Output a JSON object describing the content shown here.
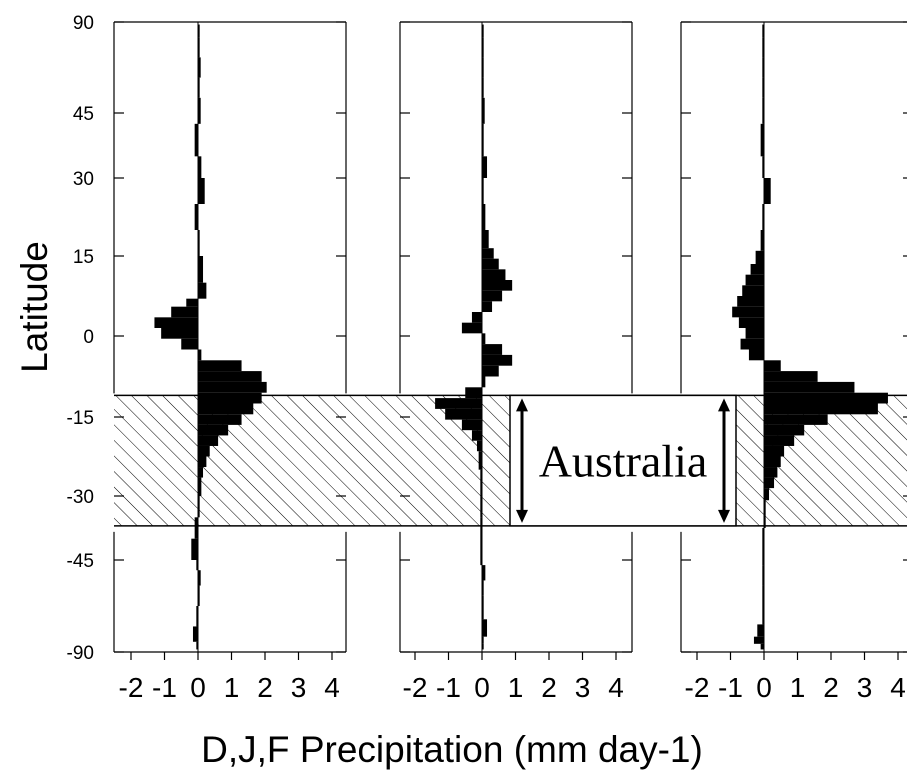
{
  "chart_data": {
    "type": "bar",
    "orientation": "horizontal",
    "ylabel": "Latitude",
    "xlabel": "D,J,F Precipitation (mm day-1)",
    "ylim": [
      -90,
      90
    ],
    "xlim": [
      -2.5,
      4.5
    ],
    "yticks": [
      "90",
      "45",
      "30",
      "15",
      "0",
      "-15",
      "-30",
      "-45",
      "-90"
    ],
    "xticks": [
      "-2",
      "-1",
      "0",
      "1",
      "2",
      "3",
      "4"
    ],
    "shaded_band": {
      "label": "Australia",
      "lat_min": -37,
      "lat_max": -11
    },
    "panels": [
      {
        "bins": [
          {
            "lat": 87.5,
            "value": 0.05
          },
          {
            "lat": 77.5,
            "value": 0.05
          },
          {
            "lat": 67.5,
            "value": 0.08
          },
          {
            "lat": 57.5,
            "value": 0.05
          },
          {
            "lat": 47.5,
            "value": 0.08
          },
          {
            "lat": 37.5,
            "value": -0.1
          },
          {
            "lat": 32.5,
            "value": 0.1
          },
          {
            "lat": 27.5,
            "value": 0.2
          },
          {
            "lat": 22.5,
            "value": -0.1
          },
          {
            "lat": 17.5,
            "value": 0.05
          },
          {
            "lat": 12.5,
            "value": 0.15
          },
          {
            "lat": 7.5,
            "value": 0.25
          },
          {
            "lat": 6.5,
            "value": -0.35
          },
          {
            "lat": 4.5,
            "value": -0.8
          },
          {
            "lat": 2.5,
            "value": -1.3
          },
          {
            "lat": 0.5,
            "value": -1.1
          },
          {
            "lat": -1.5,
            "value": -0.5
          },
          {
            "lat": -3.5,
            "value": 0.1
          },
          {
            "lat": -5.5,
            "value": 1.3
          },
          {
            "lat": -7.5,
            "value": 1.9
          },
          {
            "lat": -9.5,
            "value": 2.05
          },
          {
            "lat": -11.5,
            "value": 1.9
          },
          {
            "lat": -13.5,
            "value": 1.65
          },
          {
            "lat": -15.5,
            "value": 1.3
          },
          {
            "lat": -17.5,
            "value": 0.9
          },
          {
            "lat": -19.5,
            "value": 0.6
          },
          {
            "lat": -21.5,
            "value": 0.35
          },
          {
            "lat": -23.5,
            "value": 0.25
          },
          {
            "lat": -25.5,
            "value": 0.15
          },
          {
            "lat": -27.5,
            "value": 0.1
          },
          {
            "lat": -32.5,
            "value": 0.05
          },
          {
            "lat": -37.5,
            "value": -0.1
          },
          {
            "lat": -42.5,
            "value": -0.2
          },
          {
            "lat": -47.5,
            "value": -0.05
          },
          {
            "lat": -52.5,
            "value": 0.08
          },
          {
            "lat": -62.5,
            "value": 0.05
          },
          {
            "lat": -72.5,
            "value": -0.05
          },
          {
            "lat": -82.5,
            "value": -0.15
          },
          {
            "lat": -87.5,
            "value": -0.05
          }
        ]
      },
      {
        "bins": [
          {
            "lat": 87.5,
            "value": 0.05
          },
          {
            "lat": 77.5,
            "value": 0.05
          },
          {
            "lat": 67.5,
            "value": 0.05
          },
          {
            "lat": 57.5,
            "value": 0.05
          },
          {
            "lat": 47.5,
            "value": 0.08
          },
          {
            "lat": 37.5,
            "value": 0.05
          },
          {
            "lat": 32.5,
            "value": 0.15
          },
          {
            "lat": 27.5,
            "value": 0.05
          },
          {
            "lat": 22.5,
            "value": 0.1
          },
          {
            "lat": 17.5,
            "value": 0.2
          },
          {
            "lat": 15.5,
            "value": 0.35
          },
          {
            "lat": 13.5,
            "value": 0.5
          },
          {
            "lat": 11.5,
            "value": 0.7
          },
          {
            "lat": 9.5,
            "value": 0.9
          },
          {
            "lat": 7.5,
            "value": 0.6
          },
          {
            "lat": 5.5,
            "value": 0.3
          },
          {
            "lat": 3.5,
            "value": -0.3
          },
          {
            "lat": 1.5,
            "value": -0.6
          },
          {
            "lat": -0.5,
            "value": 0.1
          },
          {
            "lat": -2.5,
            "value": 0.6
          },
          {
            "lat": -4.5,
            "value": 0.9
          },
          {
            "lat": -6.5,
            "value": 0.5
          },
          {
            "lat": -8.5,
            "value": 0.1
          },
          {
            "lat": -10.5,
            "value": -0.5
          },
          {
            "lat": -12.5,
            "value": -1.4
          },
          {
            "lat": -14.5,
            "value": -1.1
          },
          {
            "lat": -16.5,
            "value": -0.6
          },
          {
            "lat": -18.5,
            "value": -0.3
          },
          {
            "lat": -20.5,
            "value": -0.15
          },
          {
            "lat": -22.5,
            "value": -0.1
          },
          {
            "lat": -27.5,
            "value": -0.05
          },
          {
            "lat": -42.5,
            "value": -0.05
          },
          {
            "lat": -52.5,
            "value": 0.1
          },
          {
            "lat": -57.5,
            "value": 0.05
          },
          {
            "lat": -67.5,
            "value": 0.05
          },
          {
            "lat": -80.5,
            "value": 0.15
          },
          {
            "lat": -84.5,
            "value": 0.05
          },
          {
            "lat": -87.5,
            "value": 0.05
          }
        ]
      },
      {
        "bins": [
          {
            "lat": 87.5,
            "value": -0.05
          },
          {
            "lat": 77.5,
            "value": -0.05
          },
          {
            "lat": 67.5,
            "value": -0.05
          },
          {
            "lat": 57.5,
            "value": -0.05
          },
          {
            "lat": 47.5,
            "value": -0.05
          },
          {
            "lat": 37.5,
            "value": -0.1
          },
          {
            "lat": 32.5,
            "value": -0.05
          },
          {
            "lat": 27.5,
            "value": 0.2
          },
          {
            "lat": 22.5,
            "value": -0.05
          },
          {
            "lat": 17.5,
            "value": -0.1
          },
          {
            "lat": 14.5,
            "value": -0.25
          },
          {
            "lat": 12.5,
            "value": -0.4
          },
          {
            "lat": 10.5,
            "value": -0.55
          },
          {
            "lat": 8.5,
            "value": -0.65
          },
          {
            "lat": 6.5,
            "value": -0.8
          },
          {
            "lat": 4.5,
            "value": -0.95
          },
          {
            "lat": 2.5,
            "value": -0.75
          },
          {
            "lat": 0.5,
            "value": -0.55
          },
          {
            "lat": -1.5,
            "value": -0.7
          },
          {
            "lat": -3.5,
            "value": -0.45
          },
          {
            "lat": -5.5,
            "value": 0.5
          },
          {
            "lat": -7.5,
            "value": 1.6
          },
          {
            "lat": -9.5,
            "value": 2.7
          },
          {
            "lat": -11.5,
            "value": 3.7
          },
          {
            "lat": -13.5,
            "value": 3.4
          },
          {
            "lat": -15.5,
            "value": 1.9
          },
          {
            "lat": -17.5,
            "value": 1.2
          },
          {
            "lat": -19.5,
            "value": 0.9
          },
          {
            "lat": -21.5,
            "value": 0.6
          },
          {
            "lat": -23.5,
            "value": 0.5
          },
          {
            "lat": -25.5,
            "value": 0.4
          },
          {
            "lat": -27.5,
            "value": 0.3
          },
          {
            "lat": -29.5,
            "value": 0.15
          },
          {
            "lat": -32.5,
            "value": 0.05
          },
          {
            "lat": -42.5,
            "value": -0.05
          },
          {
            "lat": -52.5,
            "value": -0.05
          },
          {
            "lat": -62.5,
            "value": -0.05
          },
          {
            "lat": -72.5,
            "value": -0.05
          },
          {
            "lat": -80.5,
            "value": -0.2
          },
          {
            "lat": -84.5,
            "value": -0.3
          },
          {
            "lat": -87.5,
            "value": -0.1
          }
        ]
      }
    ]
  }
}
